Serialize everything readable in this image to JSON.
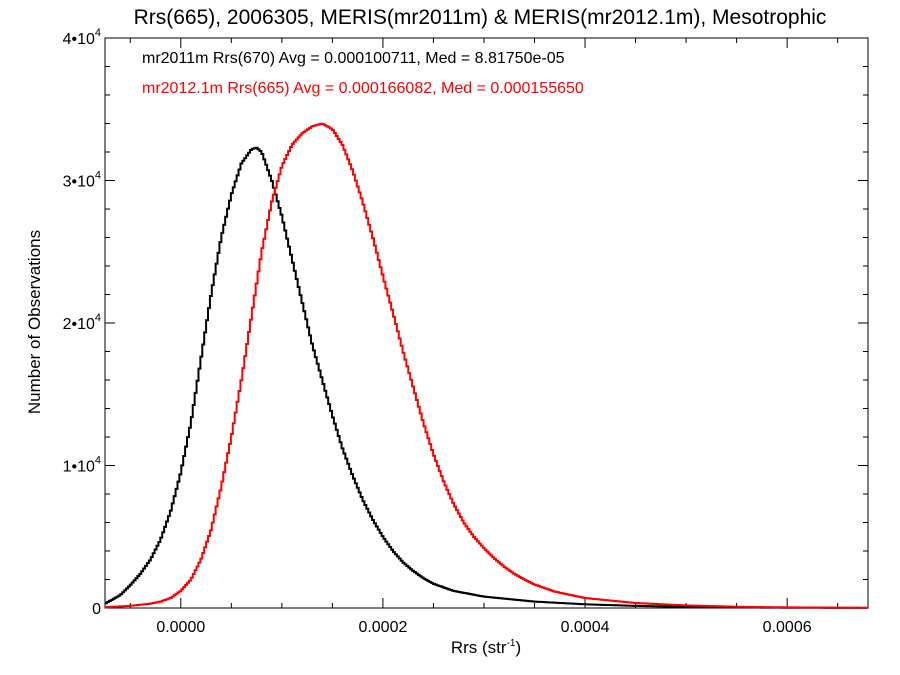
{
  "chart_data": {
    "type": "line",
    "title": "Rrs(665), 2006305, MERIS(mr2011m) & MERIS(mr2012.1m), Mesotrophic",
    "xlabel": "Rrs (str",
    "xlabel_sup": "-1",
    "xlabel_close": ")",
    "ylabel": "Number of Observations",
    "xlim": [
      -7.5e-05,
      0.00068
    ],
    "ylim": [
      0,
      40000
    ],
    "xticks": [
      {
        "value": 0.0,
        "label": "0.0000"
      },
      {
        "value": 0.0002,
        "label": "0.0002"
      },
      {
        "value": 0.0004,
        "label": "0.0004"
      },
      {
        "value": 0.0006,
        "label": "0.0006"
      }
    ],
    "yticks": [
      {
        "value": 0,
        "label": "0",
        "sup": ""
      },
      {
        "value": 10000,
        "label": "1•10",
        "sup": "4"
      },
      {
        "value": 20000,
        "label": "2•10",
        "sup": "4"
      },
      {
        "value": 30000,
        "label": "3•10",
        "sup": "4"
      },
      {
        "value": 40000,
        "label": "4•10",
        "sup": "4"
      }
    ],
    "grid": false,
    "legend_position": "top-left",
    "series": [
      {
        "name": "mr2011m Rrs(670) Avg = 0.000100711, Med = 8.81750e-05",
        "color": "#000000",
        "points": [
          [
            -7.5e-05,
            300
          ],
          [
            -6e-05,
            900
          ],
          [
            -5e-05,
            1600
          ],
          [
            -4e-05,
            2400
          ],
          [
            -3e-05,
            3400
          ],
          [
            -2e-05,
            4800
          ],
          [
            -1e-05,
            6800
          ],
          [
            0.0,
            9500
          ],
          [
            1e-05,
            13000
          ],
          [
            2e-05,
            17500
          ],
          [
            3e-05,
            22000
          ],
          [
            4e-05,
            26000
          ],
          [
            5e-05,
            29000
          ],
          [
            6e-05,
            31200
          ],
          [
            7e-05,
            32200
          ],
          [
            7.5e-05,
            32300
          ],
          [
            8e-05,
            32000
          ],
          [
            9e-05,
            30000
          ],
          [
            0.0001,
            27500
          ],
          [
            0.00011,
            24500
          ],
          [
            0.00012,
            21500
          ],
          [
            0.00013,
            18500
          ],
          [
            0.00014,
            16000
          ],
          [
            0.00015,
            13500
          ],
          [
            0.00016,
            11200
          ],
          [
            0.00017,
            9300
          ],
          [
            0.00018,
            7600
          ],
          [
            0.00019,
            6200
          ],
          [
            0.0002,
            5000
          ],
          [
            0.00021,
            4000
          ],
          [
            0.00022,
            3200
          ],
          [
            0.00023,
            2600
          ],
          [
            0.00024,
            2100
          ],
          [
            0.00025,
            1700
          ],
          [
            0.00027,
            1200
          ],
          [
            0.0003,
            800
          ],
          [
            0.00035,
            450
          ],
          [
            0.0004,
            260
          ],
          [
            0.00045,
            150
          ],
          [
            0.0005,
            80
          ],
          [
            0.00055,
            40
          ],
          [
            0.0006,
            20
          ],
          [
            0.00068,
            5
          ]
        ]
      },
      {
        "name": "mr2012.1m Rrs(665) Avg = 0.000166082, Med = 0.000155650",
        "color": "#ff0000",
        "points": [
          [
            -7.5e-05,
            50
          ],
          [
            -5e-05,
            150
          ],
          [
            -3e-05,
            300
          ],
          [
            -2e-05,
            450
          ],
          [
            -1e-05,
            700
          ],
          [
            0.0,
            1200
          ],
          [
            1e-05,
            2000
          ],
          [
            2e-05,
            3400
          ],
          [
            3e-05,
            5500
          ],
          [
            4e-05,
            8500
          ],
          [
            5e-05,
            12000
          ],
          [
            6e-05,
            16000
          ],
          [
            7e-05,
            20500
          ],
          [
            8e-05,
            25000
          ],
          [
            9e-05,
            28500
          ],
          [
            0.0001,
            31000
          ],
          [
            0.00011,
            32500
          ],
          [
            0.00012,
            33300
          ],
          [
            0.00013,
            33800
          ],
          [
            0.00014,
            34000
          ],
          [
            0.00015,
            33600
          ],
          [
            0.00016,
            32500
          ],
          [
            0.00017,
            30700
          ],
          [
            0.00018,
            28500
          ],
          [
            0.00019,
            26000
          ],
          [
            0.0002,
            23300
          ],
          [
            0.00021,
            20700
          ],
          [
            0.00022,
            18000
          ],
          [
            0.00023,
            15500
          ],
          [
            0.00024,
            13000
          ],
          [
            0.00025,
            10800
          ],
          [
            0.00026,
            8900
          ],
          [
            0.00027,
            7300
          ],
          [
            0.00028,
            6000
          ],
          [
            0.00029,
            5000
          ],
          [
            0.0003,
            4200
          ],
          [
            0.00031,
            3500
          ],
          [
            0.00032,
            2900
          ],
          [
            0.00033,
            2400
          ],
          [
            0.00034,
            2000
          ],
          [
            0.00035,
            1650
          ],
          [
            0.00037,
            1150
          ],
          [
            0.0004,
            700
          ],
          [
            0.00045,
            350
          ],
          [
            0.0005,
            180
          ],
          [
            0.00055,
            90
          ],
          [
            0.0006,
            45
          ],
          [
            0.00068,
            10
          ]
        ]
      }
    ]
  }
}
